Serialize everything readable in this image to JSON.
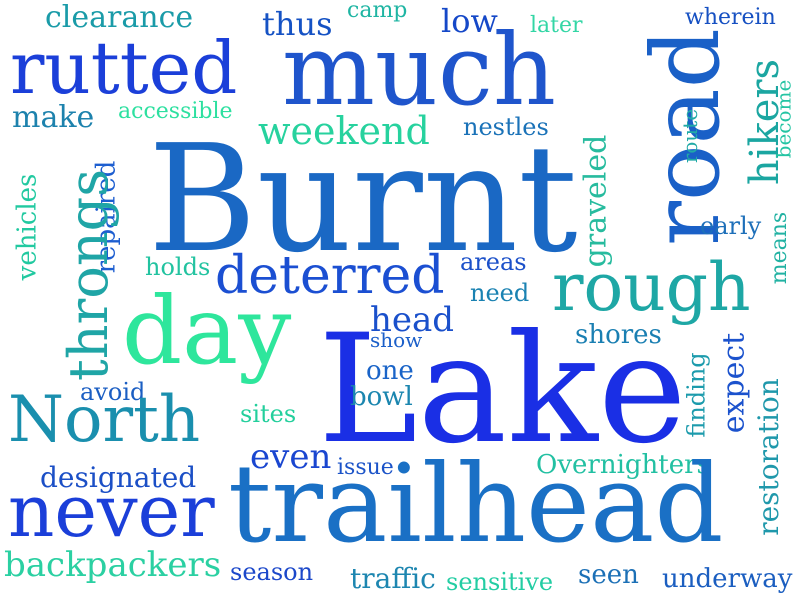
{
  "words": [
    {
      "text": "clearance",
      "color": "#1a9ba8"
    },
    {
      "text": "thus",
      "color": "#1552c4"
    },
    {
      "text": "camp",
      "color": "#1fb5a3"
    },
    {
      "text": "low",
      "color": "#1548c8"
    },
    {
      "text": "later",
      "color": "#33d6a5"
    },
    {
      "text": "wherein",
      "color": "#1650c2"
    },
    {
      "text": "rutted",
      "color": "#1b3fd9"
    },
    {
      "text": "much",
      "color": "#1f55cc"
    },
    {
      "text": "make",
      "color": "#1d82ad"
    },
    {
      "text": "accessible",
      "color": "#2de0a0"
    },
    {
      "text": "weekend",
      "color": "#27d29e"
    },
    {
      "text": "nestles",
      "color": "#1a72b8"
    },
    {
      "text": "Burnt",
      "color": "#1a68c4"
    },
    {
      "text": "road",
      "color": "#1a60c7"
    },
    {
      "text": "hikers",
      "color": "#1ba6a1"
    },
    {
      "text": "route",
      "color": "#21aaa7"
    },
    {
      "text": "become",
      "color": "#24c4a3"
    },
    {
      "text": "vehicles",
      "color": "#21c9a0"
    },
    {
      "text": "repaired",
      "color": "#1d5ed0"
    },
    {
      "text": "throngs",
      "color": "#1fa5a6"
    },
    {
      "text": "graveled",
      "color": "#27bb9e"
    },
    {
      "text": "early",
      "color": "#1d6fb9"
    },
    {
      "text": "means",
      "color": "#22b2a3"
    },
    {
      "text": "holds",
      "color": "#22c3a0"
    },
    {
      "text": "deterred",
      "color": "#1b4fd2"
    },
    {
      "text": "areas",
      "color": "#1b50c9"
    },
    {
      "text": "rough",
      "color": "#1ea7a5"
    },
    {
      "text": "need",
      "color": "#1a82b2"
    },
    {
      "text": "day",
      "color": "#2ee69c"
    },
    {
      "text": "head",
      "color": "#1a50cb"
    },
    {
      "text": "show",
      "color": "#1b5fc9"
    },
    {
      "text": "shores",
      "color": "#1a7fb2"
    },
    {
      "text": "Lake",
      "color": "#1a2fe5"
    },
    {
      "text": "one",
      "color": "#1a64c8"
    },
    {
      "text": "avoid",
      "color": "#1b5ec3"
    },
    {
      "text": "bowl",
      "color": "#1b86af"
    },
    {
      "text": "finding",
      "color": "#1c9bac"
    },
    {
      "text": "expect",
      "color": "#1b52cd"
    },
    {
      "text": "restoration",
      "color": "#1f98ab"
    },
    {
      "text": "North",
      "color": "#1a8fae"
    },
    {
      "text": "sites",
      "color": "#23cf9c"
    },
    {
      "text": "even",
      "color": "#1a46d0"
    },
    {
      "text": "issue",
      "color": "#1b53c8"
    },
    {
      "text": "Overnighters",
      "color": "#22c0a2"
    },
    {
      "text": "designated",
      "color": "#1b4fc6"
    },
    {
      "text": "never",
      "color": "#1b3fd9"
    },
    {
      "text": "trailhead",
      "color": "#1a70c5"
    },
    {
      "text": "backpackers",
      "color": "#2bd0a2"
    },
    {
      "text": "season",
      "color": "#1c48ca"
    },
    {
      "text": "traffic",
      "color": "#1d86b0"
    },
    {
      "text": "sensitive",
      "color": "#23cda3"
    },
    {
      "text": "seen",
      "color": "#1c70b6"
    },
    {
      "text": "underway",
      "color": "#1b5ec0"
    }
  ]
}
